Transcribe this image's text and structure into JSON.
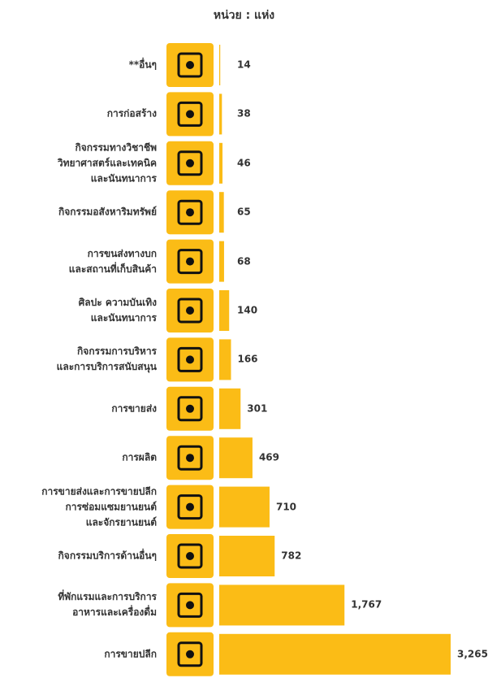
{
  "chart_data": {
    "type": "bar",
    "orientation": "horizontal",
    "title": "หน่วย : แห่ง",
    "categories": [
      "**อื่นๆ",
      "การก่อสร้าง",
      "กิจกรรมทางวิชาชีพ\nวิทยาศาสตร์และเทคนิค\nและนันทนาการ",
      "กิจกรรมอสังหาริมทรัพย์",
      "การขนส่งทางบก\nและสถานที่เก็บสินค้า",
      "ศิลปะ ความบันเทิง\nและนันทนาการ",
      "กิจกรรมการบริหาร\nและการบริการสนับสนุน",
      "การขายส่ง",
      "การผลิต",
      "การขายส่งและการขายปลีก\nการซ่อมแซมยานยนต์\nและจักรยานยนต์",
      "กิจกรรมบริการด้านอื่นๆ",
      "ที่พักแรมและการบริการ\nอาหารและเครื่องดื่ม",
      "การขายปลีก"
    ],
    "values": [
      14,
      38,
      46,
      65,
      68,
      140,
      166,
      301,
      469,
      710,
      782,
      1767,
      3265
    ],
    "value_labels": [
      "14",
      "38",
      "46",
      "65",
      "68",
      "140",
      "166",
      "301",
      "469",
      "710",
      "782",
      "1,767",
      "3,265"
    ],
    "color": "#fbbc16"
  }
}
